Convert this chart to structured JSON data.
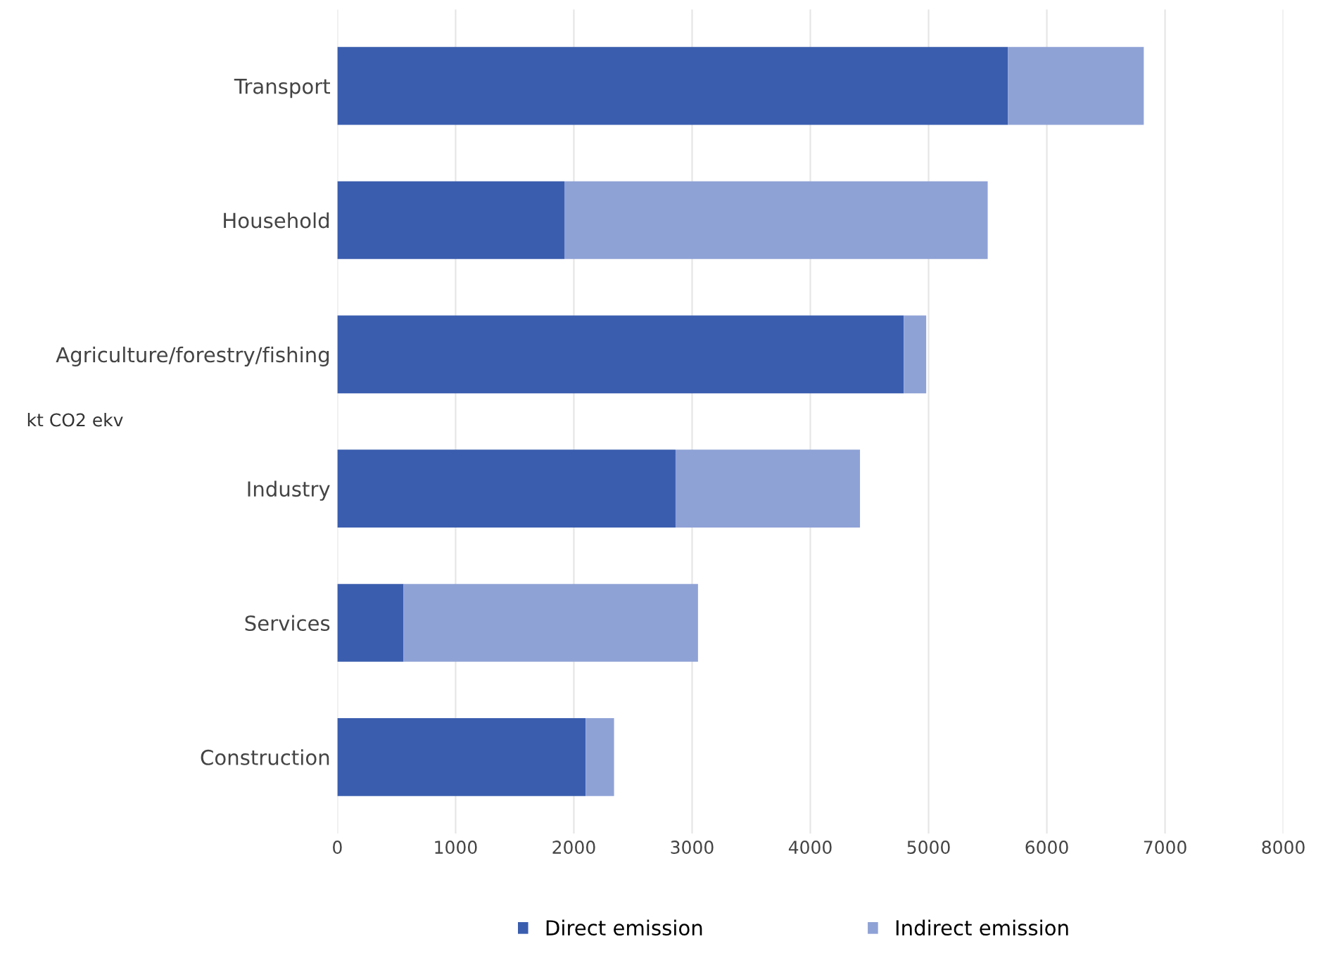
{
  "chart_data": {
    "type": "bar",
    "orientation": "horizontal",
    "stacked": true,
    "ylabel": "kt CO2 ekv",
    "categories": [
      "Transport",
      "Household",
      "Agriculture/forestry/fishing",
      "Industry",
      "Services",
      "Construction"
    ],
    "series": [
      {
        "name": "Direct emission",
        "color": "#3a5dae",
        "values": [
          5670,
          1920,
          4790,
          2860,
          560,
          2100
        ]
      },
      {
        "name": "Indirect emission",
        "color": "#8fa2d6",
        "values": [
          1150,
          3580,
          190,
          1560,
          2490,
          240
        ]
      }
    ],
    "xlim": [
      0,
      8000
    ],
    "xticks": [
      0,
      1000,
      2000,
      3000,
      4000,
      5000,
      6000,
      7000,
      8000
    ],
    "grid": "x",
    "legend": "bottom"
  }
}
